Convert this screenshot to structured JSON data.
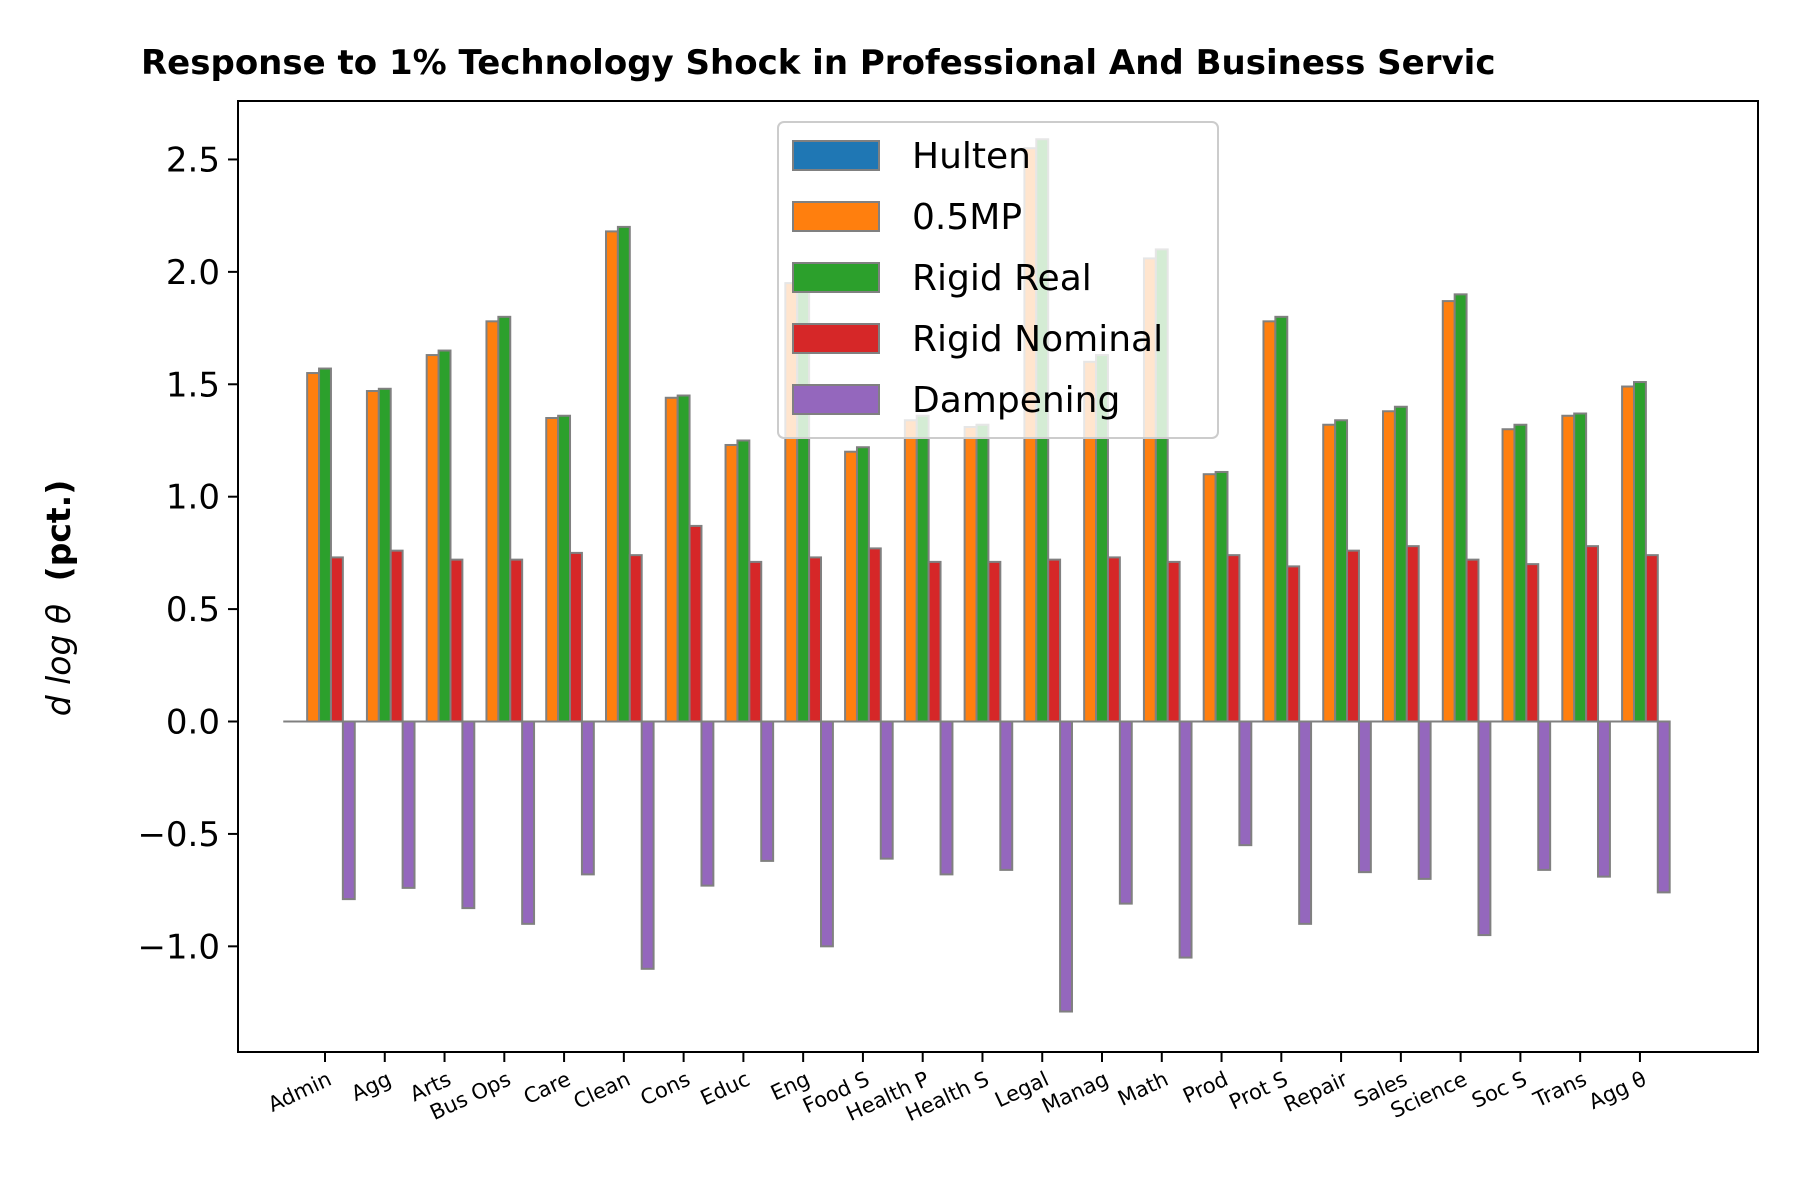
{
  "chart_data": {
    "type": "bar",
    "title": "Response to 1% Technology Shock in Professional And Business Servic",
    "ylabel_math": "d log θ",
    "ylabel_unit": "(pct.)",
    "xlabel": "",
    "ylim": [
      -1.47,
      2.76
    ],
    "yticks": [
      -1.0,
      -0.5,
      0.0,
      0.5,
      1.0,
      1.5,
      2.0,
      2.5
    ],
    "ytick_labels": [
      "−1.0",
      "−0.5",
      "0.0",
      "0.5",
      "1.0",
      "1.5",
      "2.0",
      "2.5"
    ],
    "grid": false,
    "legend_position": "top-center",
    "categories": [
      "Admin",
      "Agg",
      "Arts",
      "Bus Ops",
      "Care",
      "Clean",
      "Cons",
      "Educ",
      "Eng",
      "Food S",
      "Health P",
      "Health S",
      "Legal",
      "Manag",
      "Math",
      "Prod",
      "Prot S",
      "Repair",
      "Sales",
      "Science",
      "Soc S",
      "Trans",
      "Agg θ"
    ],
    "series": [
      {
        "name": "Hulten",
        "color": "#1f77b4",
        "values": [
          0,
          0,
          0,
          0,
          0,
          0,
          0,
          0,
          0,
          0,
          0,
          0,
          0,
          0,
          0,
          0,
          0,
          0,
          0,
          0,
          0,
          0,
          0
        ]
      },
      {
        "name": "0.5MP",
        "color": "#ff7f0e",
        "values": [
          1.55,
          1.47,
          1.63,
          1.78,
          1.35,
          2.18,
          1.44,
          1.23,
          1.95,
          1.2,
          1.34,
          1.31,
          2.55,
          1.6,
          2.06,
          1.1,
          1.78,
          1.32,
          1.38,
          1.87,
          1.3,
          1.36,
          1.49
        ]
      },
      {
        "name": "Rigid Real",
        "color": "#2ca02c",
        "values": [
          1.57,
          1.48,
          1.65,
          1.8,
          1.36,
          2.2,
          1.45,
          1.25,
          1.98,
          1.22,
          1.36,
          1.32,
          2.59,
          1.63,
          2.1,
          1.11,
          1.8,
          1.34,
          1.4,
          1.9,
          1.32,
          1.37,
          1.51
        ]
      },
      {
        "name": "Rigid Nominal",
        "color": "#d62728",
        "values": [
          0.73,
          0.76,
          0.72,
          0.72,
          0.75,
          0.74,
          0.87,
          0.71,
          0.73,
          0.77,
          0.71,
          0.71,
          0.72,
          0.73,
          0.71,
          0.74,
          0.69,
          0.76,
          0.78,
          0.72,
          0.7,
          0.78,
          0.74
        ]
      },
      {
        "name": "Dampening",
        "color": "#9467bd",
        "values": [
          -0.79,
          -0.74,
          -0.83,
          -0.9,
          -0.68,
          -1.1,
          -0.73,
          -0.62,
          -1.0,
          -0.61,
          -0.68,
          -0.66,
          -1.29,
          -0.81,
          -1.05,
          -0.55,
          -0.9,
          -0.67,
          -0.7,
          -0.95,
          -0.66,
          -0.69,
          -0.76
        ]
      }
    ]
  }
}
